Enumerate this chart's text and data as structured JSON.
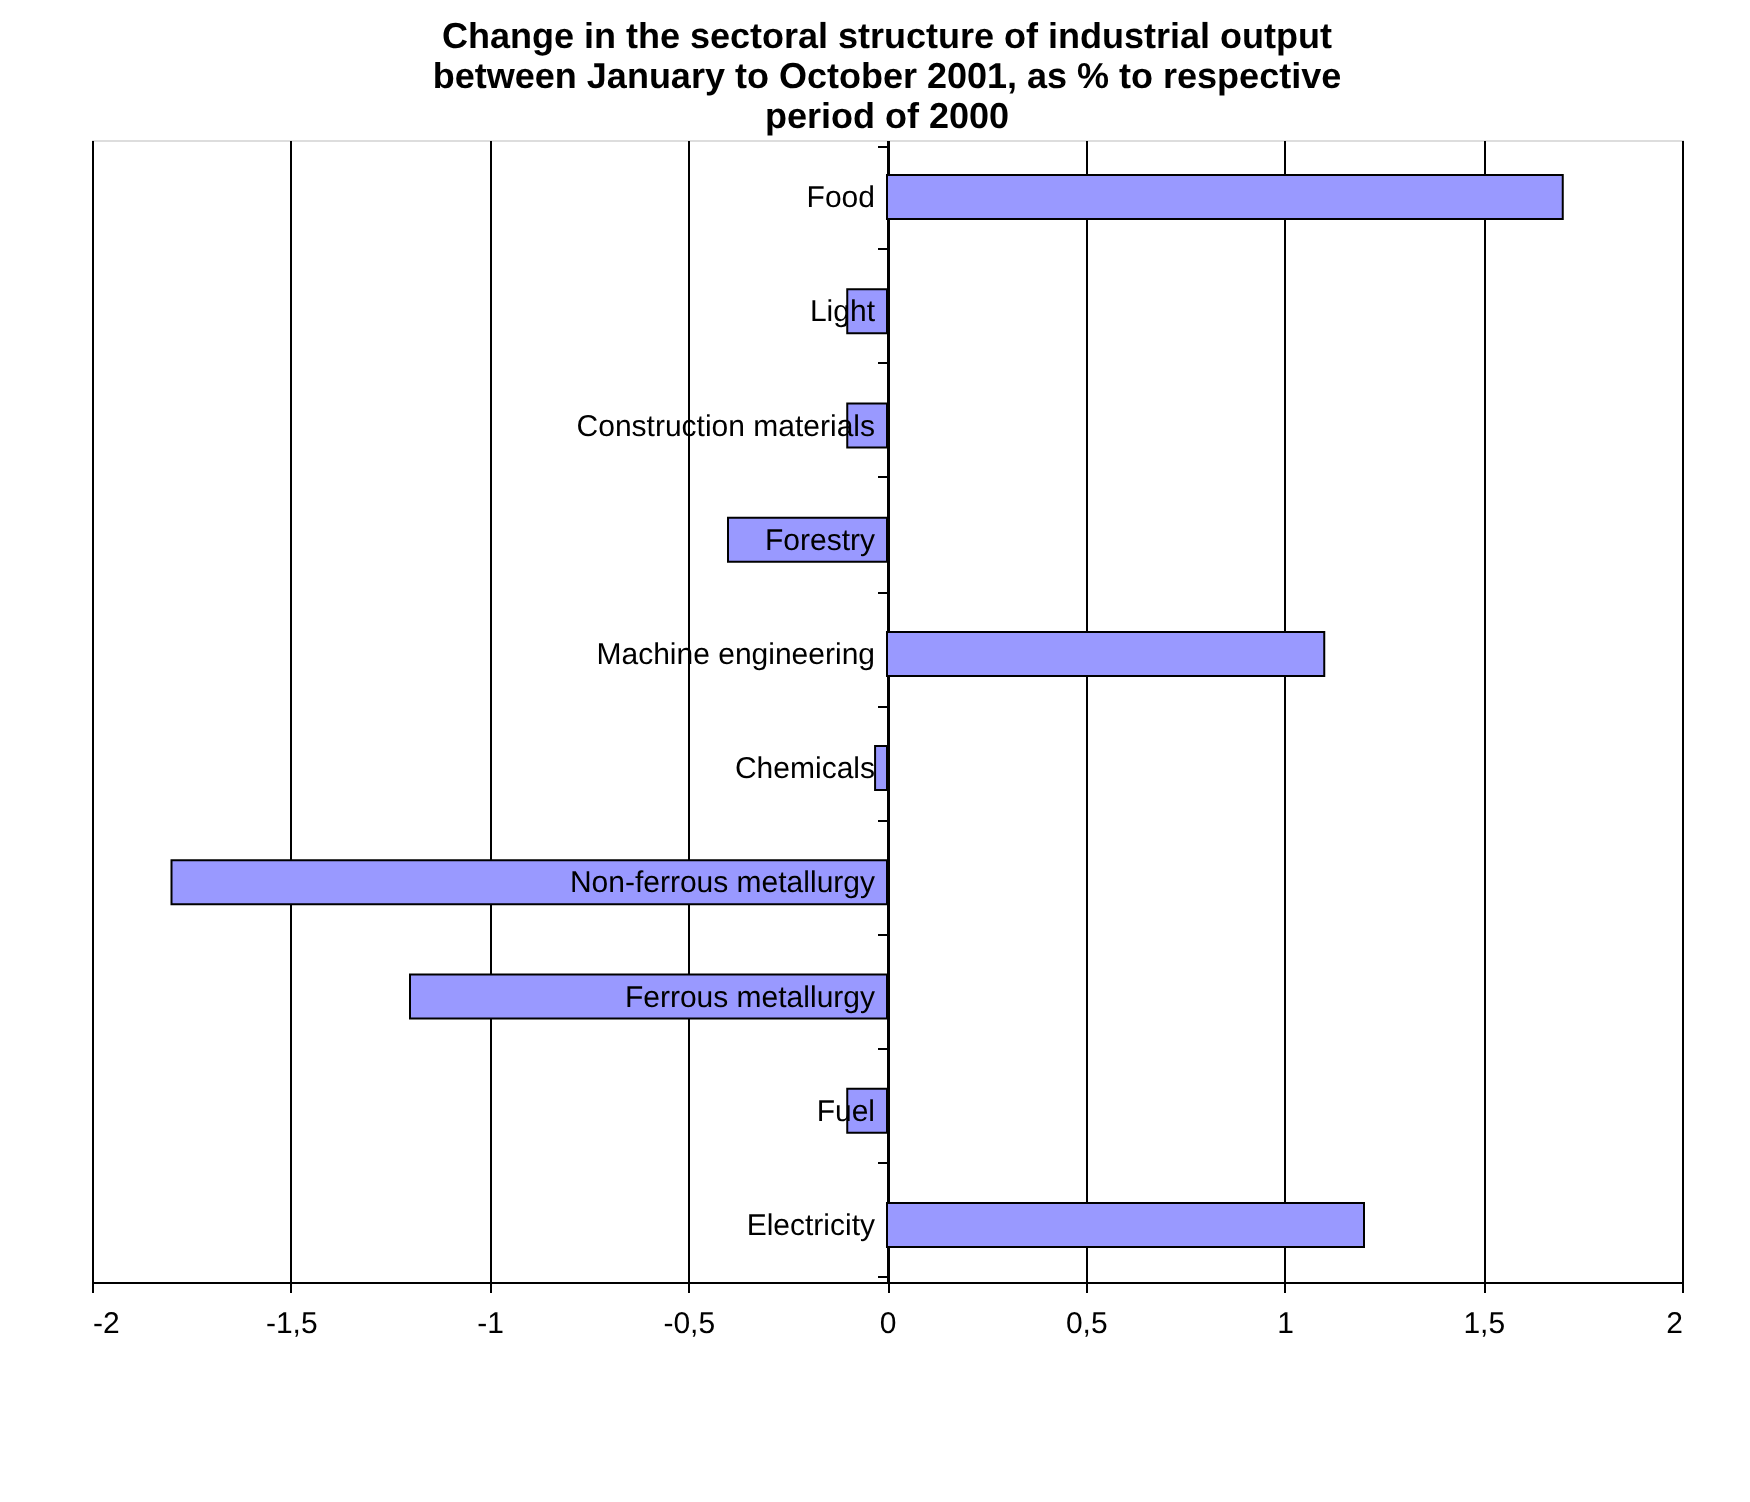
{
  "chart_data": {
    "type": "bar",
    "orientation": "horizontal",
    "title": "Change in the sectoral structure of industrial output between January to October 2001, as % to respective period of 2000",
    "categories": [
      "Food",
      "Light",
      "Construction materials",
      "Forestry",
      "Machine engineering",
      "Chemicals",
      "Non-ferrous metallurgy",
      "Ferrous metallurgy",
      "Fuel",
      "Electricity"
    ],
    "values": [
      1.7,
      -0.1,
      -0.1,
      -0.4,
      1.1,
      -0.03,
      -1.8,
      -1.2,
      -0.1,
      1.2
    ],
    "color": "#9999ff",
    "xlim": [
      -2,
      2
    ],
    "xticks": [
      {
        "value": -2,
        "label": "-2"
      },
      {
        "value": -1.5,
        "label": "-1,5"
      },
      {
        "value": -1,
        "label": "-1"
      },
      {
        "value": -0.5,
        "label": "-0,5"
      },
      {
        "value": 0,
        "label": "0"
      },
      {
        "value": 0.5,
        "label": "0,5"
      },
      {
        "value": 1,
        "label": "1"
      },
      {
        "value": 1.5,
        "label": "1,5"
      },
      {
        "value": 2,
        "label": "2"
      }
    ],
    "grid": "x"
  }
}
